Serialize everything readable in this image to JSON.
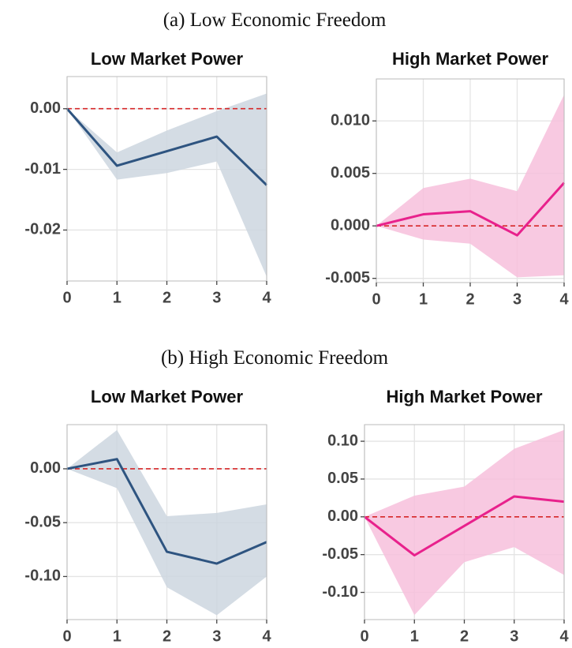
{
  "figure_captions": [
    "(a) Low Economic Freedom",
    "(b) High Economic Freedom"
  ],
  "chart_data": [
    {
      "type": "line",
      "title": "Low Market Power",
      "x": [
        0,
        1,
        2,
        3,
        4
      ],
      "xlim": [
        0,
        4
      ],
      "xticks": [
        0,
        1,
        2,
        3,
        4
      ],
      "ylim": [
        -0.0284,
        0.0053
      ],
      "yticks": [
        {
          "value": 0,
          "label": "0.00"
        },
        {
          "value": -0.01,
          "label": "-0.01"
        },
        {
          "value": -0.02,
          "label": "-0.02"
        }
      ],
      "grid": true,
      "reference_line": 0,
      "reference_color": "#d62728",
      "series": [
        {
          "color": "#2e5480",
          "band_color": "#cdd6df",
          "values": [
            0,
            -0.0094,
            -0.007,
            -0.0046,
            -0.0126
          ],
          "lower": [
            0,
            -0.0117,
            -0.0106,
            -0.0087,
            -0.0277
          ],
          "upper": [
            0,
            -0.0072,
            -0.0036,
            -0.0004,
            0.0025
          ]
        }
      ]
    },
    {
      "type": "line",
      "title": "High Market Power",
      "x": [
        0,
        1,
        2,
        3,
        4
      ],
      "xlim": [
        0,
        4
      ],
      "xticks": [
        0,
        1,
        2,
        3,
        4
      ],
      "ylim": [
        -0.0054,
        0.014
      ],
      "yticks": [
        {
          "value": 0.01,
          "label": "0.010"
        },
        {
          "value": 0.005,
          "label": "0.005"
        },
        {
          "value": 0,
          "label": "0.000"
        },
        {
          "value": -0.005,
          "label": "-0.005"
        }
      ],
      "grid": true,
      "reference_line": 0,
      "reference_color": "#d62728",
      "series": [
        {
          "color": "#e8218c",
          "band_color": "#f7c0dc",
          "values": [
            0,
            0.0011,
            0.0014,
            -0.0009,
            0.0041
          ],
          "lower": [
            0,
            -0.0013,
            -0.0017,
            -0.0049,
            -0.0047
          ],
          "upper": [
            0,
            0.0036,
            0.0045,
            0.0033,
            0.0125
          ]
        }
      ]
    },
    {
      "type": "line",
      "title": "Low Market Power",
      "x": [
        0,
        1,
        2,
        3,
        4
      ],
      "xlim": [
        0,
        4
      ],
      "xticks": [
        0,
        1,
        2,
        3,
        4
      ],
      "ylim": [
        -0.14,
        0.041
      ],
      "yticks": [
        {
          "value": 0,
          "label": "0.00"
        },
        {
          "value": -0.05,
          "label": "-0.05"
        },
        {
          "value": -0.1,
          "label": "-0.10"
        }
      ],
      "grid": true,
      "reference_line": 0,
      "reference_color": "#d62728",
      "series": [
        {
          "color": "#2e5480",
          "band_color": "#cdd6df",
          "values": [
            0,
            0.009,
            -0.077,
            -0.088,
            -0.068
          ],
          "lower": [
            0,
            -0.018,
            -0.11,
            -0.136,
            -0.1
          ],
          "upper": [
            0,
            0.036,
            -0.044,
            -0.041,
            -0.033
          ]
        }
      ]
    },
    {
      "type": "line",
      "title": "High Market Power",
      "x": [
        0,
        1,
        2,
        3,
        4
      ],
      "xlim": [
        0,
        4
      ],
      "xticks": [
        0,
        1,
        2,
        3,
        4
      ],
      "ylim": [
        -0.136,
        0.122
      ],
      "yticks": [
        {
          "value": 0.1,
          "label": "0.10"
        },
        {
          "value": 0.05,
          "label": "0.05"
        },
        {
          "value": 0,
          "label": "0.00"
        },
        {
          "value": -0.05,
          "label": "-0.05"
        },
        {
          "value": -0.1,
          "label": "-0.10"
        }
      ],
      "grid": true,
      "reference_line": 0,
      "reference_color": "#d62728",
      "series": [
        {
          "color": "#e8218c",
          "band_color": "#f7c0dc",
          "values": [
            0,
            -0.051,
            -0.012,
            0.027,
            0.02
          ],
          "lower": [
            0,
            -0.13,
            -0.06,
            -0.04,
            -0.077
          ],
          "upper": [
            0,
            0.028,
            0.04,
            0.09,
            0.115
          ]
        }
      ]
    }
  ]
}
